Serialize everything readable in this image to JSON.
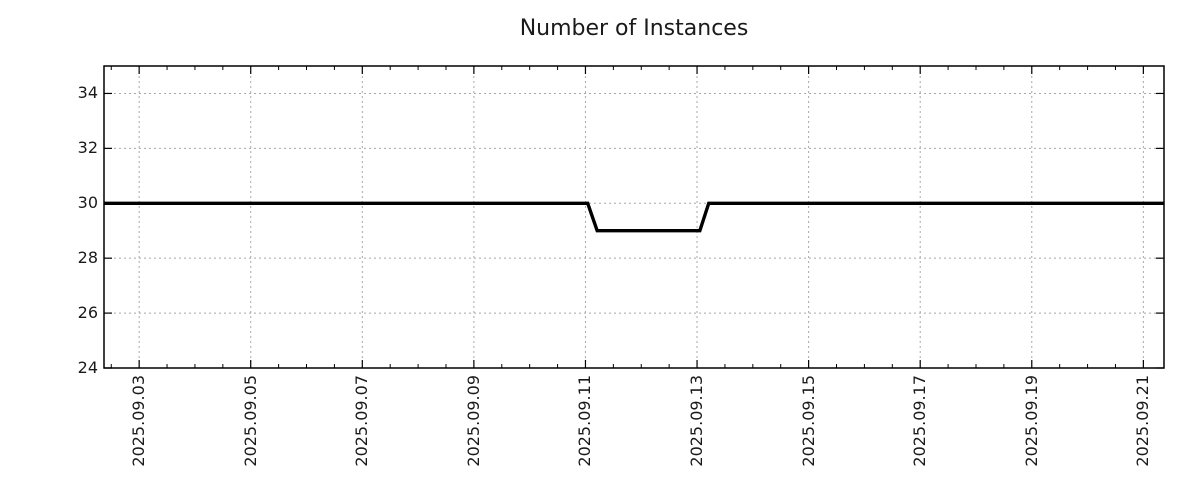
{
  "page": {
    "background_color": "#ffffff",
    "text_color": "#1a1a1a"
  },
  "chart_data": {
    "type": "line",
    "title": "Number of Instances",
    "xlabel": "",
    "ylabel": "",
    "x_unit": "date",
    "x_range_days": [
      2.37,
      21.37
    ],
    "x_major_ticks": [
      {
        "day": 3,
        "label": "2025.09.03"
      },
      {
        "day": 5,
        "label": "2025.09.05"
      },
      {
        "day": 7,
        "label": "2025.09.07"
      },
      {
        "day": 9,
        "label": "2025.09.09"
      },
      {
        "day": 11,
        "label": "2025.09.11"
      },
      {
        "day": 13,
        "label": "2025.09.13"
      },
      {
        "day": 15,
        "label": "2025.09.15"
      },
      {
        "day": 17,
        "label": "2025.09.17"
      },
      {
        "day": 19,
        "label": "2025.09.19"
      },
      {
        "day": 21,
        "label": "2025.09.21"
      }
    ],
    "x_minor_tick_step_days": 0.5,
    "x_tick_label_rotation_deg": -90,
    "ylim": [
      24,
      35
    ],
    "y_ticks": [
      24,
      26,
      28,
      30,
      32,
      34
    ],
    "grid": {
      "visible": true,
      "color": "#a8a8a8",
      "dash": "2 3",
      "line_width": 1
    },
    "axis_color": "#000000",
    "tick_mirroring": true,
    "legend": {
      "visible": false
    },
    "series": [
      {
        "name": "instances",
        "color": "#000000",
        "line_width": 3.4,
        "points": [
          [
            2.37,
            30
          ],
          [
            11.04,
            30
          ],
          [
            11.21,
            29
          ],
          [
            13.05,
            29
          ],
          [
            13.21,
            30
          ],
          [
            21.37,
            30
          ]
        ]
      }
    ]
  }
}
